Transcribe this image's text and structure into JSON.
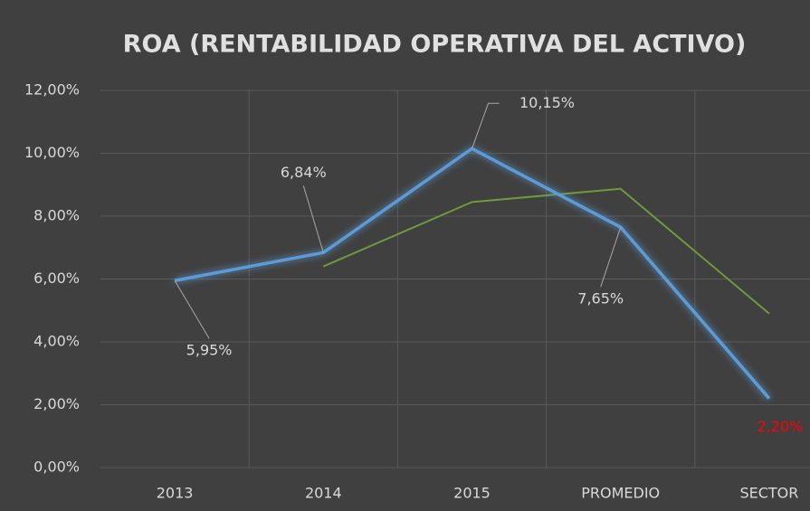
{
  "chart_data": {
    "type": "line",
    "title": "ROA (RENTABILIDAD OPERATIVA DEL ACTIVO)",
    "categories": [
      "2013",
      "2014",
      "2015",
      "PROMEDIO",
      "SECTOR"
    ],
    "series": [
      {
        "color": "#5b9bd5",
        "values": [
          5.95,
          6.84,
          10.15,
          7.65,
          2.2
        ],
        "value_labels": [
          "5,95%",
          "6,84%",
          "10,15%",
          "7,65%",
          "2,20%"
        ],
        "value_label_colors": [
          "#d9d9d9",
          "#d9d9d9",
          "#d9d9d9",
          "#d9d9d9",
          "#ff0000"
        ]
      },
      {
        "color": "#6f9a3c",
        "values": [
          null,
          6.4,
          8.45,
          8.87,
          4.9
        ]
      }
    ],
    "ylim": [
      0,
      12
    ],
    "yticks": [
      {
        "value": 0,
        "label": "0,00%"
      },
      {
        "value": 2,
        "label": "2,00%"
      },
      {
        "value": 4,
        "label": "4,00%"
      },
      {
        "value": 6,
        "label": "6,00%"
      },
      {
        "value": 8,
        "label": "8,00%"
      },
      {
        "value": 10,
        "label": "10,00%"
      },
      {
        "value": 12,
        "label": "12,00%"
      }
    ],
    "grid": true
  }
}
